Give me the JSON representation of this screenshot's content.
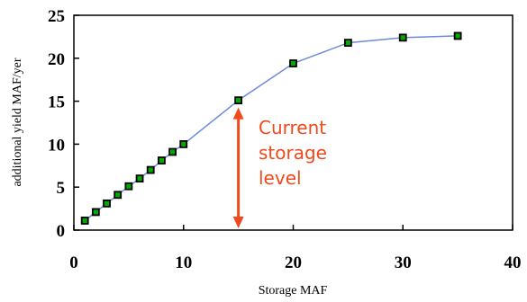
{
  "chart_data": {
    "type": "line",
    "xlabel": "Storage MAF",
    "ylabel": "additional yield MAF/yer",
    "xlim": [
      0,
      40
    ],
    "ylim": [
      0,
      25
    ],
    "xticks": [
      "0",
      "10",
      "20",
      "30",
      "40"
    ],
    "yticks": [
      "0",
      "5",
      "10",
      "15",
      "20",
      "25"
    ],
    "grid": false,
    "series": [
      {
        "x": [
          1,
          2,
          3,
          4,
          5,
          6,
          7,
          8,
          9,
          10,
          15,
          20,
          25,
          30,
          35
        ],
        "y": [
          1.1,
          2.1,
          3.1,
          4.1,
          5.1,
          6.0,
          7.0,
          8.1,
          9.1,
          10.0,
          15.1,
          19.4,
          21.8,
          22.4,
          22.6
        ],
        "line_color": "#6b8bd6",
        "marker_color": "#00aa00",
        "marker_edge": "#000000"
      }
    ],
    "annotation": {
      "lines": [
        "Current",
        "storage",
        "level"
      ],
      "arrow_x": 15,
      "arrow_from_y": 0,
      "arrow_to_y": 15.1,
      "color": "#f04a1c"
    }
  }
}
